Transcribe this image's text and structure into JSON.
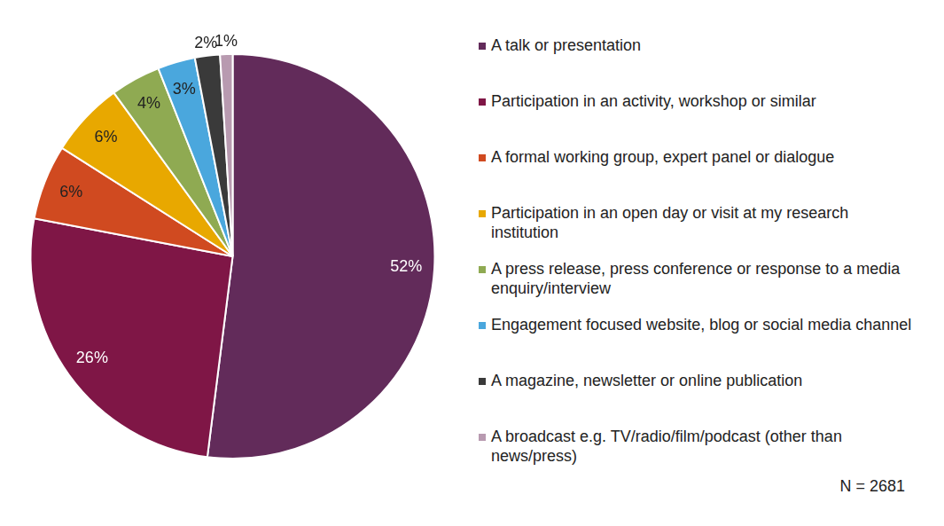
{
  "chart_data": {
    "type": "pie",
    "categories": [
      "A talk or presentation",
      "Participation in an activity, workshop or similar",
      "A formal working group, expert panel or dialogue",
      "Participation in an open day or visit at my research institution",
      "A press release, press conference or response to a media enquiry/interview",
      "Engagement focused website, blog or social media channel",
      "A magazine, newsletter or online publication",
      "A broadcast e.g. TV/radio/film/podcast (other than news/press)"
    ],
    "values": [
      52,
      26,
      6,
      6,
      4,
      3,
      2,
      1
    ],
    "value_labels": [
      "52%",
      "26%",
      "6%",
      "6%",
      "4%",
      "3%",
      "2%",
      "1%"
    ],
    "colors": [
      "#622b5a",
      "#7f1646",
      "#d04a20",
      "#e8a800",
      "#8faa52",
      "#4aa7dd",
      "#3a3a3a",
      "#b89ab0"
    ],
    "legend": "right",
    "data_labels": true,
    "annotations": [
      "N = 2681"
    ]
  }
}
